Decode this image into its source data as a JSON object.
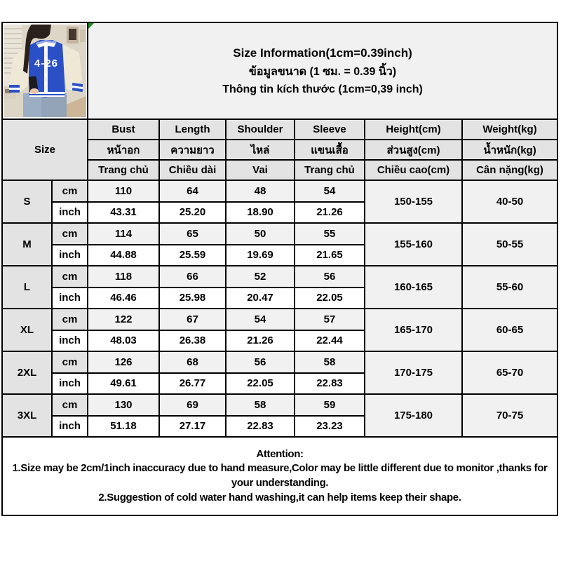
{
  "title": {
    "en": "Size Information(1cm=0.39inch)",
    "th": "ข้อมูลขนาด (1 ซม. = 0.39 นิ้ว)",
    "vi": "Thông tin kích thước (1cm=0,39 inch)"
  },
  "photo": {
    "jacket_number": "4-26"
  },
  "table": {
    "size_header": "Size",
    "unit_labels": {
      "cm": "cm",
      "inch": "inch"
    },
    "columns": [
      {
        "en": "Bust",
        "th": "หน้าอก",
        "vi": "Trang chủ"
      },
      {
        "en": "Length",
        "th": "ความยาว",
        "vi": "Chiều dài"
      },
      {
        "en": "Shoulder",
        "th": "ไหล่",
        "vi": "Vai"
      },
      {
        "en": "Sleeve",
        "th": "แขนเสื้อ",
        "vi": "Trang chủ"
      },
      {
        "en": "Height(cm)",
        "th": "ส่วนสูง(cm)",
        "vi": "Chiều cao(cm)"
      },
      {
        "en": "Weight(kg)",
        "th": "น้ำหนัก(kg)",
        "vi": "Cân nặng(kg)"
      }
    ],
    "rows": [
      {
        "size": "S",
        "cm": [
          "110",
          "64",
          "48",
          "54"
        ],
        "inch": [
          "43.31",
          "25.20",
          "18.90",
          "21.26"
        ],
        "height": "150-155",
        "weight": "40-50"
      },
      {
        "size": "M",
        "cm": [
          "114",
          "65",
          "50",
          "55"
        ],
        "inch": [
          "44.88",
          "25.59",
          "19.69",
          "21.65"
        ],
        "height": "155-160",
        "weight": "50-55"
      },
      {
        "size": "L",
        "cm": [
          "118",
          "66",
          "52",
          "56"
        ],
        "inch": [
          "46.46",
          "25.98",
          "20.47",
          "22.05"
        ],
        "height": "160-165",
        "weight": "55-60"
      },
      {
        "size": "XL",
        "cm": [
          "122",
          "67",
          "54",
          "57"
        ],
        "inch": [
          "48.03",
          "26.38",
          "21.26",
          "22.44"
        ],
        "height": "165-170",
        "weight": "60-65"
      },
      {
        "size": "2XL",
        "cm": [
          "126",
          "68",
          "56",
          "58"
        ],
        "inch": [
          "49.61",
          "26.77",
          "22.05",
          "22.83"
        ],
        "height": "170-175",
        "weight": "65-70"
      },
      {
        "size": "3XL",
        "cm": [
          "130",
          "69",
          "58",
          "59"
        ],
        "inch": [
          "51.18",
          "27.17",
          "22.83",
          "23.23"
        ],
        "height": "175-180",
        "weight": "70-75"
      }
    ]
  },
  "attention": {
    "heading": "Attention:",
    "line1": "1.Size may be 2cm/1inch inaccuracy due to hand measure,Color may be little different due to monitor ,thanks for your understanding.",
    "line2": "2.Suggestion of cold water hand washing,it can help items keep their shape."
  },
  "colors": {
    "border": "#000000",
    "header_bg": "#e3e3e3",
    "soft_bg": "#f1f1f1",
    "jacket_blue": "#2b50c6",
    "flag_green": "#1d8a1d"
  }
}
